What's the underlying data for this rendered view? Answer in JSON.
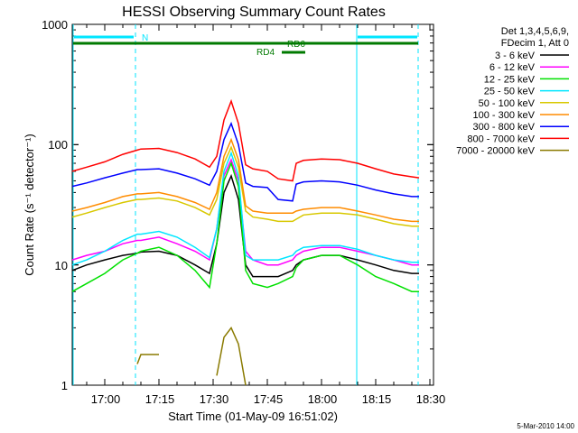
{
  "chart_data": {
    "type": "line",
    "title": "HESSI Observing Summary Count Rates",
    "xlabel": "Start Time (01-May-09 16:51:02)",
    "ylabel": "Count Rate (s⁻¹ detector⁻¹)",
    "y_scale": "log",
    "ylim": [
      1,
      1000
    ],
    "x_ticks": [
      "17:00",
      "17:15",
      "17:30",
      "17:45",
      "18:00",
      "18:15",
      "18:30"
    ],
    "y_ticks": [
      "1",
      "10",
      "100",
      "1000"
    ],
    "legend_header": [
      "Det 1,3,4,5,6,9,",
      "FDecim 1, Att 0"
    ],
    "legend_position": "right, outside plot",
    "footer": "5-Mar-2010 14:00",
    "annotations": [
      {
        "text": "N",
        "color": "#00e6ff"
      },
      {
        "text": "RD0",
        "color": "#007a00"
      },
      {
        "text": "RD4",
        "color": "#007a00"
      }
    ],
    "x": [
      "16:51",
      "16:55",
      "17:00",
      "17:05",
      "17:09",
      "17:10",
      "17:15",
      "17:20",
      "17:25",
      "17:29",
      "17:31",
      "17:33",
      "17:35",
      "17:37",
      "17:39",
      "17:41",
      "17:45",
      "17:48",
      "17:52",
      "17:53",
      "17:55",
      "18:00",
      "18:05",
      "18:10",
      "18:15",
      "18:20",
      "18:25",
      "18:27"
    ],
    "series": [
      {
        "name": "3 - 6 keV",
        "color": "#000000",
        "values": [
          9,
          10,
          11,
          12,
          12.5,
          12.8,
          13,
          12,
          10,
          8.5,
          15,
          40,
          55,
          35,
          10,
          8,
          8,
          8,
          9,
          10,
          11,
          12,
          12,
          11,
          10,
          9,
          8.5,
          8.5
        ]
      },
      {
        "name": "6 - 12 keV",
        "color": "#ff00ff",
        "values": [
          11,
          12,
          13,
          15,
          16,
          16,
          17,
          15,
          13,
          11,
          20,
          55,
          75,
          50,
          13,
          11,
          10,
          10,
          11,
          12,
          13,
          14,
          14,
          13,
          12,
          11,
          10,
          10
        ]
      },
      {
        "name": "12 - 25 keV",
        "color": "#00e000",
        "values": [
          6,
          7,
          8.5,
          11,
          12.5,
          13,
          14,
          12,
          9,
          6.5,
          15,
          50,
          70,
          45,
          9,
          7,
          6.5,
          7,
          8,
          9.5,
          11,
          12,
          12,
          10,
          8,
          7,
          6,
          6
        ]
      },
      {
        "name": "25 - 50 keV",
        "color": "#00e6ff",
        "values": [
          10,
          11,
          13,
          16,
          18,
          18,
          19,
          17,
          14,
          11.5,
          20,
          60,
          85,
          55,
          12,
          11,
          11,
          11,
          12,
          13,
          14,
          14.5,
          14.5,
          13.5,
          12,
          11,
          10.5,
          10.5
        ]
      },
      {
        "name": "50 - 100 keV",
        "color": "#d8c800",
        "values": [
          25,
          27,
          30,
          33,
          35,
          35,
          36,
          34,
          30,
          26,
          35,
          70,
          95,
          65,
          28,
          25,
          24,
          23,
          23,
          24,
          26,
          27,
          27,
          26,
          24,
          22,
          21,
          21
        ]
      },
      {
        "name": "100 - 300 keV",
        "color": "#ff8c00",
        "values": [
          28,
          30,
          33,
          37,
          39,
          39,
          40,
          37,
          33,
          29,
          40,
          80,
          110,
          75,
          31,
          28,
          27,
          27,
          27,
          28,
          29,
          30,
          30,
          28,
          26,
          24,
          23,
          23
        ]
      },
      {
        "name": "300 - 800 keV",
        "color": "#0000ff",
        "values": [
          45,
          48,
          53,
          58,
          62,
          62,
          63,
          58,
          52,
          46,
          60,
          110,
          150,
          100,
          48,
          45,
          44,
          35,
          34,
          47,
          49,
          50,
          49,
          46,
          42,
          39,
          37,
          37
        ]
      },
      {
        "name": "800 - 7000 keV",
        "color": "#ff0000",
        "values": [
          60,
          65,
          72,
          83,
          90,
          92,
          93,
          86,
          76,
          65,
          80,
          160,
          230,
          150,
          68,
          63,
          60,
          52,
          50,
          70,
          74,
          76,
          75,
          70,
          63,
          57,
          54,
          53
        ]
      },
      {
        "name": "7000 - 20000 keV",
        "color": "#8a7a00",
        "values": [
          null,
          null,
          null,
          null,
          1.5,
          1.8,
          1.8,
          null,
          null,
          null,
          1.2,
          2.5,
          3,
          2.2,
          1,
          null,
          null,
          null,
          null,
          null,
          null,
          null,
          null,
          null,
          null,
          null,
          null,
          null
        ]
      }
    ]
  }
}
